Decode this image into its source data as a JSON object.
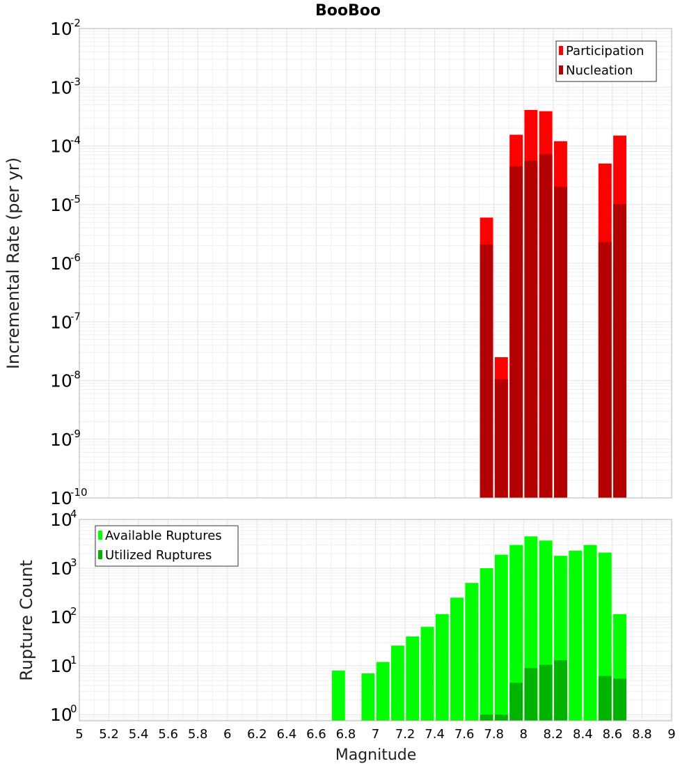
{
  "title": "BooBoo",
  "chart_data": [
    {
      "type": "bar",
      "scale": "log",
      "ylabel": "Incremental Rate (per yr)",
      "ylim": [
        1e-10,
        0.01
      ],
      "yticks": [
        {
          "base": "10",
          "exp": "-2",
          "value": 0.01
        },
        {
          "base": "10",
          "exp": "-3",
          "value": 0.001
        },
        {
          "base": "10",
          "exp": "-4",
          "value": 0.0001
        },
        {
          "base": "10",
          "exp": "-5",
          "value": 1e-05
        },
        {
          "base": "10",
          "exp": "-6",
          "value": 1e-06
        },
        {
          "base": "10",
          "exp": "-7",
          "value": 1e-07
        },
        {
          "base": "10",
          "exp": "-8",
          "value": 1e-08
        },
        {
          "base": "10",
          "exp": "-9",
          "value": 1e-09
        },
        {
          "base": "10",
          "exp": "-10",
          "value": 1e-10
        }
      ],
      "bar_width": 0.1,
      "legend_position": "top-right",
      "series": [
        {
          "name": "Participation",
          "color": "#ff0000",
          "x": [
            7.75,
            7.85,
            7.95,
            8.05,
            8.15,
            8.25,
            8.55,
            8.65
          ],
          "values": [
            6e-06,
            2.5e-08,
            0.000155,
            0.00041,
            0.00039,
            0.00012,
            5e-05,
            0.00015
          ]
        },
        {
          "name": "Nucleation",
          "color": "#b30000",
          "x": [
            7.75,
            7.85,
            7.95,
            8.05,
            8.15,
            8.25,
            8.55,
            8.65
          ],
          "values": [
            2.1e-06,
            1.05e-08,
            4.5e-05,
            5.6e-05,
            7.2e-05,
            2e-05,
            2.3e-06,
            1.02e-05
          ]
        }
      ]
    },
    {
      "type": "bar",
      "scale": "log",
      "ylabel": "Rupture Count",
      "xlabel": "Magnitude",
      "ylim": [
        0.75,
        10000
      ],
      "yticks": [
        {
          "base": "10",
          "exp": "4",
          "value": 10000
        },
        {
          "base": "10",
          "exp": "3",
          "value": 1000
        },
        {
          "base": "10",
          "exp": "2",
          "value": 100
        },
        {
          "base": "10",
          "exp": "1",
          "value": 10
        },
        {
          "base": "10",
          "exp": "0",
          "value": 1
        }
      ],
      "bar_width": 0.1,
      "legend_position": "top-left",
      "series": [
        {
          "name": "Available Ruptures",
          "color": "#00ff00",
          "x": [
            6.75,
            6.95,
            7.05,
            7.15,
            7.25,
            7.35,
            7.45,
            7.55,
            7.65,
            7.75,
            7.85,
            7.95,
            8.05,
            8.15,
            8.25,
            8.35,
            8.45,
            8.55,
            8.65
          ],
          "values": [
            8,
            7,
            12,
            26,
            40,
            63,
            115,
            250,
            500,
            1000,
            1900,
            3000,
            4500,
            3700,
            1800,
            2300,
            3000,
            2100,
            115
          ]
        },
        {
          "name": "Utilized Ruptures",
          "color": "#00b300",
          "x": [
            7.75,
            7.85,
            7.95,
            8.05,
            8.15,
            8.25,
            8.55,
            8.65
          ],
          "values": [
            1,
            1,
            4.5,
            9,
            10.5,
            13,
            6.2,
            5.5
          ]
        }
      ]
    }
  ],
  "x_axis": {
    "xlim": [
      5,
      9
    ],
    "tick_labels": [
      "5",
      "5.2",
      "5.4",
      "5.6",
      "5.8",
      "6",
      "6.2",
      "6.4",
      "6.6",
      "6.8",
      "7",
      "7.2",
      "7.4",
      "7.6",
      "7.8",
      "8",
      "8.2",
      "8.4",
      "8.6",
      "8.8",
      "9"
    ]
  }
}
